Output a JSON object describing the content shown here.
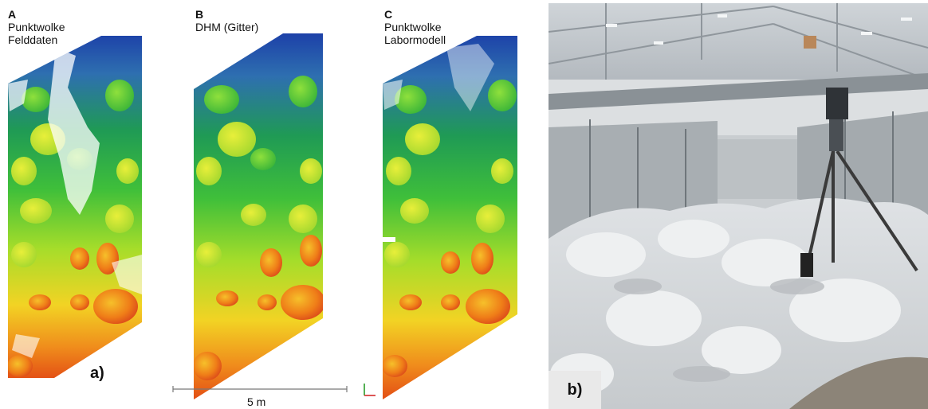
{
  "panel_a": {
    "title_a": "A",
    "title_a_l1": "Punktwolke",
    "title_a_l2": "Felddaten",
    "title_b": "B",
    "title_b_l1": "DHM (Gitter)",
    "title_c": "C",
    "title_c_l1": "Punktwolke",
    "title_c_l2": "Labormodell",
    "label": "a)",
    "scale_label": "5 m"
  },
  "panel_b": {
    "label": "b)"
  }
}
